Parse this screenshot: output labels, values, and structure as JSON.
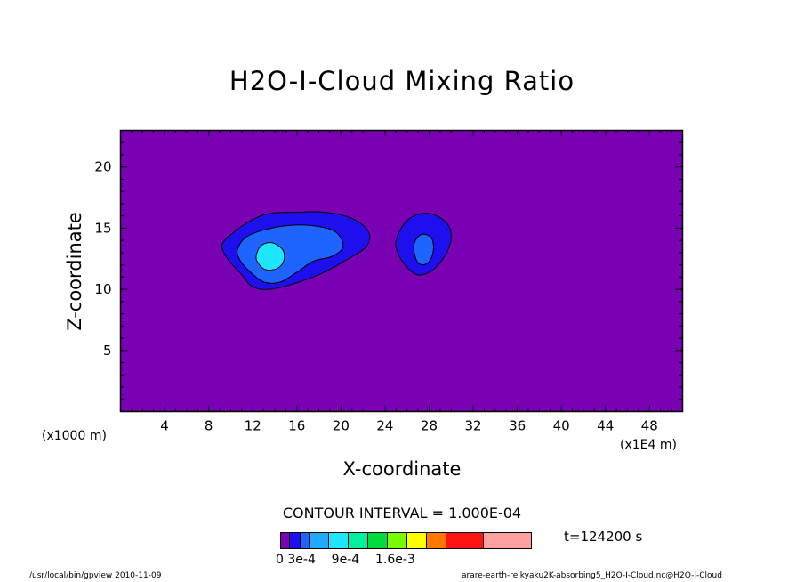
{
  "chart_data": {
    "type": "heatmap",
    "title": "H2O-I-Cloud Mixing Ratio",
    "xlabel": "X-coordinate",
    "ylabel": "Z-coordinate",
    "x_unit_left": "(x1000 m)",
    "x_unit_right": "(x1E4 m)",
    "xlim": [
      0,
      51
    ],
    "ylim": [
      0,
      23
    ],
    "xticks": [
      4,
      8,
      12,
      16,
      20,
      24,
      28,
      32,
      36,
      40,
      44,
      48
    ],
    "yticks": [
      5,
      10,
      15,
      20
    ],
    "contour_interval": "CONTOUR INTERVAL = 1.000E-04",
    "time_label": "t=124200 s",
    "colorbar": {
      "colors": [
        "#7a00b4",
        "#1e10ee",
        "#1e64ff",
        "#1eaaff",
        "#1ee6ff",
        "#00f0a0",
        "#00dc3c",
        "#78fa00",
        "#ffff00",
        "#ff7800",
        "#ff1414",
        "#ffa0a0"
      ],
      "labels": [
        "0",
        "3e-4",
        "9e-4",
        "1.6e-3"
      ]
    },
    "background_color": "#7a00b4",
    "regions": [
      {
        "level": 1,
        "color": "#1e10ee",
        "outline": [
          [
            9.2,
            13.6
          ],
          [
            10.2,
            14.6
          ],
          [
            11.8,
            15.6
          ],
          [
            13.5,
            16.2
          ],
          [
            16,
            16.3
          ],
          [
            18.5,
            16.3
          ],
          [
            21,
            15.8
          ],
          [
            22.5,
            14.7
          ],
          [
            22.3,
            13.5
          ],
          [
            20.5,
            12.4
          ],
          [
            18,
            11.2
          ],
          [
            15.5,
            10.4
          ],
          [
            13.5,
            10
          ],
          [
            12,
            10.2
          ],
          [
            11,
            11.2
          ],
          [
            9.8,
            12.4
          ]
        ]
      },
      {
        "level": 2,
        "color": "#1e64ff",
        "outline": [
          [
            10.6,
            13.2
          ],
          [
            11.3,
            14.2
          ],
          [
            12.8,
            14.8
          ],
          [
            15,
            15.2
          ],
          [
            17.5,
            15.2
          ],
          [
            19.5,
            14.7
          ],
          [
            20.2,
            13.5
          ],
          [
            19.2,
            12.7
          ],
          [
            17.5,
            12.3
          ],
          [
            16,
            11.4
          ],
          [
            14.5,
            10.6
          ],
          [
            13,
            10.6
          ],
          [
            11.8,
            11.4
          ],
          [
            10.9,
            12.3
          ]
        ]
      },
      {
        "level": 3,
        "color": "#1ee6ff",
        "outline": [
          [
            12.3,
            12.6
          ],
          [
            12.6,
            13.4
          ],
          [
            13.3,
            13.8
          ],
          [
            14.1,
            13.7
          ],
          [
            14.8,
            13.1
          ],
          [
            14.8,
            12.3
          ],
          [
            14.2,
            11.7
          ],
          [
            13.2,
            11.6
          ],
          [
            12.6,
            12
          ]
        ]
      },
      {
        "level": 1,
        "color": "#1e10ee",
        "outline": [
          [
            25,
            13.9
          ],
          [
            25.6,
            15.2
          ],
          [
            26.6,
            16
          ],
          [
            28,
            16.2
          ],
          [
            29.4,
            15.6
          ],
          [
            30,
            14.6
          ],
          [
            29.8,
            13.4
          ],
          [
            29,
            12.2
          ],
          [
            28,
            11.4
          ],
          [
            26.9,
            11.2
          ],
          [
            25.9,
            11.9
          ],
          [
            25.2,
            12.9
          ]
        ]
      },
      {
        "level": 2,
        "color": "#1e64ff",
        "outline": [
          [
            26.6,
            13.4
          ],
          [
            26.9,
            14.2
          ],
          [
            27.5,
            14.5
          ],
          [
            28.2,
            14.2
          ],
          [
            28.4,
            13.3
          ],
          [
            28.1,
            12.4
          ],
          [
            27.5,
            12
          ],
          [
            26.9,
            12.3
          ]
        ]
      }
    ]
  },
  "footer": {
    "left": "/usr/local/bin/gpview   2010-11-09",
    "right": "arare-earth-reikyaku2K-absorbing5_H2O-I-Cloud.nc@H2O-I-Cloud"
  }
}
